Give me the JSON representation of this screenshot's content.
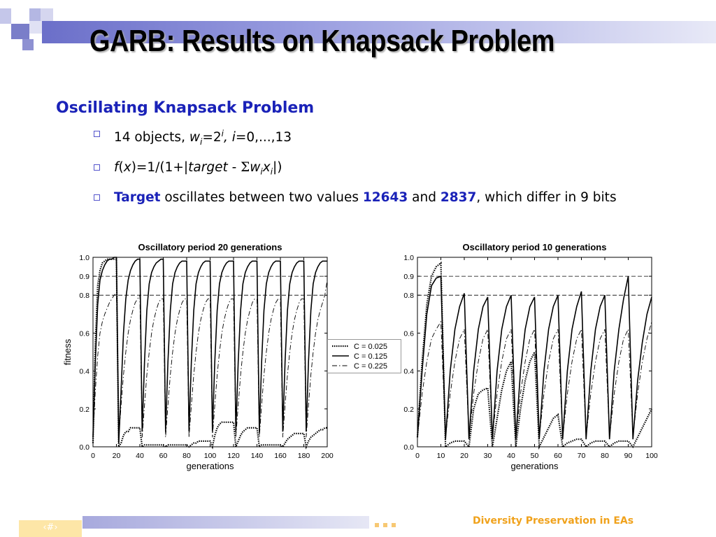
{
  "slide": {
    "title": "GARB: Results on Knapsack Problem",
    "heading": "Oscillating Knapsack Problem",
    "footer_text": "Diversity Preservation in EAs",
    "page_number": "‹#›",
    "colors": {
      "accent_blue": "#1a22b8",
      "footer_orange": "#f0a21c"
    }
  },
  "bullets": {
    "b1": {
      "pre": "14 objects, ",
      "w": "w",
      "i_sub": "i",
      "eq": "=2",
      "i_sup": "i",
      "comma": ", ",
      "i_var": "i",
      "rest": "=0,...,13"
    },
    "b2": {
      "f": "f",
      "open": "(",
      "x": "x",
      "mid": ")=1/(1+|",
      "target": "target",
      "minus": " - ",
      "sigma": "Σ",
      "w": "w",
      "i1": "i",
      "xv": "x",
      "i2": "i",
      "close": "|)"
    },
    "b3": {
      "target_word": "Target",
      "text1": " oscillates between two values ",
      "v1": "12643",
      "and": " and ",
      "v2": "2837",
      "text2": ", which differ in 9 bits"
    }
  },
  "chart_data": [
    {
      "type": "line",
      "title": "Oscillatory period 20 generations",
      "xlabel": "generations",
      "ylabel": "fitness",
      "xlim": [
        0,
        200
      ],
      "ylim": [
        0,
        1
      ],
      "x_ticks": [
        "0",
        "20",
        "40",
        "60",
        "80",
        "100",
        "120",
        "140",
        "160",
        "180",
        "200"
      ],
      "y_ticks": [
        "0.0",
        "0.2",
        "0.4",
        "0.6",
        "0.8",
        "0.9",
        "1.0"
      ],
      "reference_lines": [
        0.8,
        0.9
      ],
      "legend": [
        "C = 0.025",
        "C = 0.125",
        "C = 0.225"
      ],
      "legend_position": "right",
      "series": [
        {
          "name": "C = 0.025",
          "style": "dotted",
          "x": [
            0,
            2,
            4,
            6,
            8,
            10,
            12,
            14,
            16,
            18,
            20,
            22,
            24,
            26,
            28,
            30,
            32,
            34,
            36,
            38,
            40,
            42,
            44,
            46,
            48,
            50,
            52,
            54,
            56,
            58,
            60,
            62,
            64,
            66,
            68,
            70,
            72,
            74,
            76,
            78,
            80,
            82,
            84,
            86,
            88,
            90,
            92,
            94,
            96,
            98,
            100,
            102,
            104,
            106,
            108,
            110,
            112,
            114,
            116,
            118,
            120,
            122,
            124,
            126,
            128,
            130,
            132,
            134,
            136,
            138,
            140,
            142,
            144,
            146,
            148,
            150,
            152,
            154,
            156,
            158,
            160,
            162,
            164,
            166,
            168,
            170,
            172,
            174,
            176,
            178,
            180,
            182,
            184,
            186,
            188,
            190,
            192,
            194,
            196,
            198,
            200
          ],
          "y": [
            0.02,
            0.55,
            0.85,
            0.93,
            0.97,
            0.98,
            0.99,
            0.99,
            0.99,
            0.99,
            0.99,
            0.0,
            0.02,
            0.06,
            0.08,
            0.08,
            0.1,
            0.1,
            0.1,
            0.1,
            0.1,
            0.0,
            0.01,
            0.01,
            0.01,
            0.01,
            0.01,
            0.01,
            0.01,
            0.01,
            0.01,
            0.0,
            0.01,
            0.01,
            0.01,
            0.01,
            0.01,
            0.01,
            0.01,
            0.01,
            0.01,
            0.0,
            0.01,
            0.02,
            0.02,
            0.03,
            0.03,
            0.03,
            0.03,
            0.03,
            0.03,
            0.0,
            0.06,
            0.1,
            0.12,
            0.13,
            0.13,
            0.13,
            0.13,
            0.13,
            0.13,
            0.0,
            0.03,
            0.06,
            0.08,
            0.09,
            0.1,
            0.1,
            0.1,
            0.1,
            0.1,
            0.0,
            0.01,
            0.01,
            0.01,
            0.01,
            0.01,
            0.01,
            0.01,
            0.01,
            0.01,
            0.0,
            0.02,
            0.04,
            0.05,
            0.06,
            0.07,
            0.07,
            0.07,
            0.07,
            0.07,
            0.0,
            0.03,
            0.05,
            0.06,
            0.07,
            0.08,
            0.09,
            0.09,
            0.1,
            0.1
          ]
        },
        {
          "name": "C = 0.125",
          "style": "solid",
          "x": [
            0,
            2,
            4,
            6,
            8,
            10,
            12,
            14,
            16,
            18,
            20,
            22,
            24,
            26,
            28,
            30,
            32,
            34,
            36,
            38,
            40,
            42,
            44,
            46,
            48,
            50,
            52,
            54,
            56,
            58,
            60,
            62,
            64,
            66,
            68,
            70,
            72,
            74,
            76,
            78,
            80,
            82,
            84,
            86,
            88,
            90,
            92,
            94,
            96,
            98,
            100,
            102,
            104,
            106,
            108,
            110,
            112,
            114,
            116,
            118,
            120,
            122,
            124,
            126,
            128,
            130,
            132,
            134,
            136,
            138,
            140,
            142,
            144,
            146,
            148,
            150,
            152,
            154,
            156,
            158,
            160,
            162,
            164,
            166,
            168,
            170,
            172,
            174,
            176,
            178,
            180,
            182,
            184,
            186,
            188,
            190,
            192,
            194,
            196,
            198,
            200
          ],
          "y": [
            0.05,
            0.45,
            0.75,
            0.88,
            0.93,
            0.96,
            0.98,
            0.99,
            0.99,
            1.0,
            1.0,
            0.02,
            0.3,
            0.6,
            0.78,
            0.88,
            0.93,
            0.96,
            0.98,
            0.99,
            0.99,
            0.08,
            0.45,
            0.72,
            0.86,
            0.92,
            0.95,
            0.97,
            0.98,
            0.99,
            0.99,
            0.08,
            0.45,
            0.72,
            0.86,
            0.92,
            0.95,
            0.97,
            0.98,
            0.98,
            0.98,
            0.08,
            0.45,
            0.72,
            0.86,
            0.92,
            0.95,
            0.97,
            0.98,
            0.98,
            0.98,
            0.08,
            0.45,
            0.72,
            0.86,
            0.92,
            0.95,
            0.97,
            0.98,
            0.98,
            0.98,
            0.08,
            0.45,
            0.72,
            0.86,
            0.92,
            0.95,
            0.97,
            0.98,
            0.98,
            0.98,
            0.08,
            0.45,
            0.72,
            0.86,
            0.92,
            0.95,
            0.97,
            0.98,
            0.98,
            0.98,
            0.08,
            0.45,
            0.72,
            0.86,
            0.92,
            0.95,
            0.97,
            0.98,
            0.98,
            0.98,
            0.08,
            0.45,
            0.72,
            0.86,
            0.92,
            0.95,
            0.97,
            0.98,
            0.98,
            0.98
          ]
        },
        {
          "name": "C = 0.225",
          "style": "dashdot",
          "x": [
            0,
            2,
            4,
            6,
            8,
            10,
            12,
            14,
            16,
            18,
            20,
            22,
            24,
            26,
            28,
            30,
            32,
            34,
            36,
            38,
            40,
            42,
            44,
            46,
            48,
            50,
            52,
            54,
            56,
            58,
            60,
            62,
            64,
            66,
            68,
            70,
            72,
            74,
            76,
            78,
            80,
            82,
            84,
            86,
            88,
            90,
            92,
            94,
            96,
            98,
            100,
            102,
            104,
            106,
            108,
            110,
            112,
            114,
            116,
            118,
            120,
            122,
            124,
            126,
            128,
            130,
            132,
            134,
            136,
            138,
            140,
            142,
            144,
            146,
            148,
            150,
            152,
            154,
            156,
            158,
            160,
            162,
            164,
            166,
            168,
            170,
            172,
            174,
            176,
            178,
            180,
            182,
            184,
            186,
            188,
            190,
            192,
            194,
            196,
            198,
            200
          ],
          "y": [
            0.05,
            0.3,
            0.48,
            0.6,
            0.66,
            0.7,
            0.73,
            0.76,
            0.78,
            0.8,
            0.81,
            0.05,
            0.22,
            0.38,
            0.5,
            0.6,
            0.67,
            0.72,
            0.76,
            0.78,
            0.8,
            0.05,
            0.22,
            0.38,
            0.5,
            0.6,
            0.67,
            0.72,
            0.76,
            0.78,
            0.78,
            0.05,
            0.22,
            0.38,
            0.5,
            0.6,
            0.67,
            0.72,
            0.76,
            0.78,
            0.78,
            0.05,
            0.22,
            0.38,
            0.5,
            0.6,
            0.67,
            0.72,
            0.76,
            0.78,
            0.78,
            0.05,
            0.22,
            0.38,
            0.5,
            0.6,
            0.67,
            0.72,
            0.76,
            0.78,
            0.78,
            0.05,
            0.22,
            0.38,
            0.5,
            0.6,
            0.67,
            0.72,
            0.76,
            0.78,
            0.78,
            0.05,
            0.22,
            0.38,
            0.5,
            0.6,
            0.67,
            0.72,
            0.76,
            0.78,
            0.78,
            0.05,
            0.22,
            0.38,
            0.5,
            0.6,
            0.67,
            0.72,
            0.76,
            0.78,
            0.78,
            0.05,
            0.22,
            0.38,
            0.5,
            0.6,
            0.67,
            0.72,
            0.76,
            0.8,
            0.88
          ]
        }
      ]
    },
    {
      "type": "line",
      "title": "Oscillatory period 10 generations",
      "xlabel": "generations",
      "ylabel": "",
      "xlim": [
        0,
        100
      ],
      "ylim": [
        0,
        1
      ],
      "x_ticks": [
        "0",
        "10",
        "20",
        "30",
        "40",
        "50",
        "60",
        "70",
        "80",
        "90",
        "100"
      ],
      "y_ticks": [
        "0.0",
        "0.2",
        "0.4",
        "0.6",
        "0.8",
        "0.9",
        "1.0"
      ],
      "reference_lines": [
        0.8,
        0.9
      ],
      "series": [
        {
          "name": "C = 0.025",
          "style": "dotted",
          "x": [
            0,
            2,
            4,
            6,
            8,
            10,
            12,
            14,
            16,
            18,
            20,
            22,
            24,
            26,
            28,
            30,
            32,
            34,
            36,
            38,
            40,
            42,
            44,
            46,
            48,
            50,
            52,
            54,
            56,
            58,
            60,
            62,
            64,
            66,
            68,
            70,
            72,
            74,
            76,
            78,
            80,
            82,
            84,
            86,
            88,
            90,
            92,
            94,
            96,
            98,
            100
          ],
          "y": [
            0.05,
            0.45,
            0.75,
            0.9,
            0.95,
            0.97,
            0.0,
            0.02,
            0.03,
            0.03,
            0.03,
            0.0,
            0.2,
            0.28,
            0.3,
            0.31,
            0.0,
            0.15,
            0.3,
            0.4,
            0.45,
            0.0,
            0.2,
            0.35,
            0.45,
            0.5,
            0.0,
            0.05,
            0.1,
            0.15,
            0.17,
            0.0,
            0.02,
            0.03,
            0.04,
            0.04,
            0.0,
            0.02,
            0.03,
            0.03,
            0.03,
            0.0,
            0.02,
            0.03,
            0.03,
            0.03,
            0.0,
            0.05,
            0.1,
            0.15,
            0.2
          ]
        },
        {
          "name": "C = 0.125",
          "style": "solid",
          "x": [
            0,
            2,
            4,
            6,
            8,
            10,
            12,
            14,
            16,
            18,
            20,
            22,
            24,
            26,
            28,
            30,
            32,
            34,
            36,
            38,
            40,
            42,
            44,
            46,
            48,
            50,
            52,
            54,
            56,
            58,
            60,
            62,
            64,
            66,
            68,
            70,
            72,
            74,
            76,
            78,
            80,
            82,
            84,
            86,
            88,
            90,
            92,
            94,
            96,
            98,
            100
          ],
          "y": [
            0.05,
            0.4,
            0.7,
            0.85,
            0.89,
            0.9,
            0.04,
            0.4,
            0.62,
            0.74,
            0.81,
            0.04,
            0.4,
            0.62,
            0.74,
            0.79,
            0.04,
            0.4,
            0.62,
            0.74,
            0.8,
            0.04,
            0.4,
            0.62,
            0.74,
            0.79,
            0.04,
            0.4,
            0.62,
            0.74,
            0.8,
            0.04,
            0.4,
            0.62,
            0.74,
            0.82,
            0.04,
            0.4,
            0.62,
            0.74,
            0.8,
            0.04,
            0.4,
            0.62,
            0.78,
            0.9,
            0.04,
            0.35,
            0.55,
            0.7,
            0.79
          ]
        },
        {
          "name": "C = 0.225",
          "style": "dashdot",
          "x": [
            0,
            2,
            4,
            6,
            8,
            10,
            12,
            14,
            16,
            18,
            20,
            22,
            24,
            26,
            28,
            30,
            32,
            34,
            36,
            38,
            40,
            42,
            44,
            46,
            48,
            50,
            52,
            54,
            56,
            58,
            60,
            62,
            64,
            66,
            68,
            70,
            72,
            74,
            76,
            78,
            80,
            82,
            84,
            86,
            88,
            90,
            92,
            94,
            96,
            98,
            100
          ],
          "y": [
            0.05,
            0.28,
            0.45,
            0.57,
            0.62,
            0.66,
            0.05,
            0.28,
            0.45,
            0.57,
            0.62,
            0.05,
            0.28,
            0.45,
            0.57,
            0.62,
            0.05,
            0.28,
            0.45,
            0.57,
            0.62,
            0.05,
            0.28,
            0.45,
            0.57,
            0.62,
            0.05,
            0.28,
            0.45,
            0.57,
            0.62,
            0.05,
            0.28,
            0.45,
            0.57,
            0.62,
            0.05,
            0.28,
            0.45,
            0.57,
            0.62,
            0.05,
            0.28,
            0.45,
            0.57,
            0.62,
            0.05,
            0.28,
            0.45,
            0.57,
            0.66
          ]
        }
      ]
    }
  ]
}
